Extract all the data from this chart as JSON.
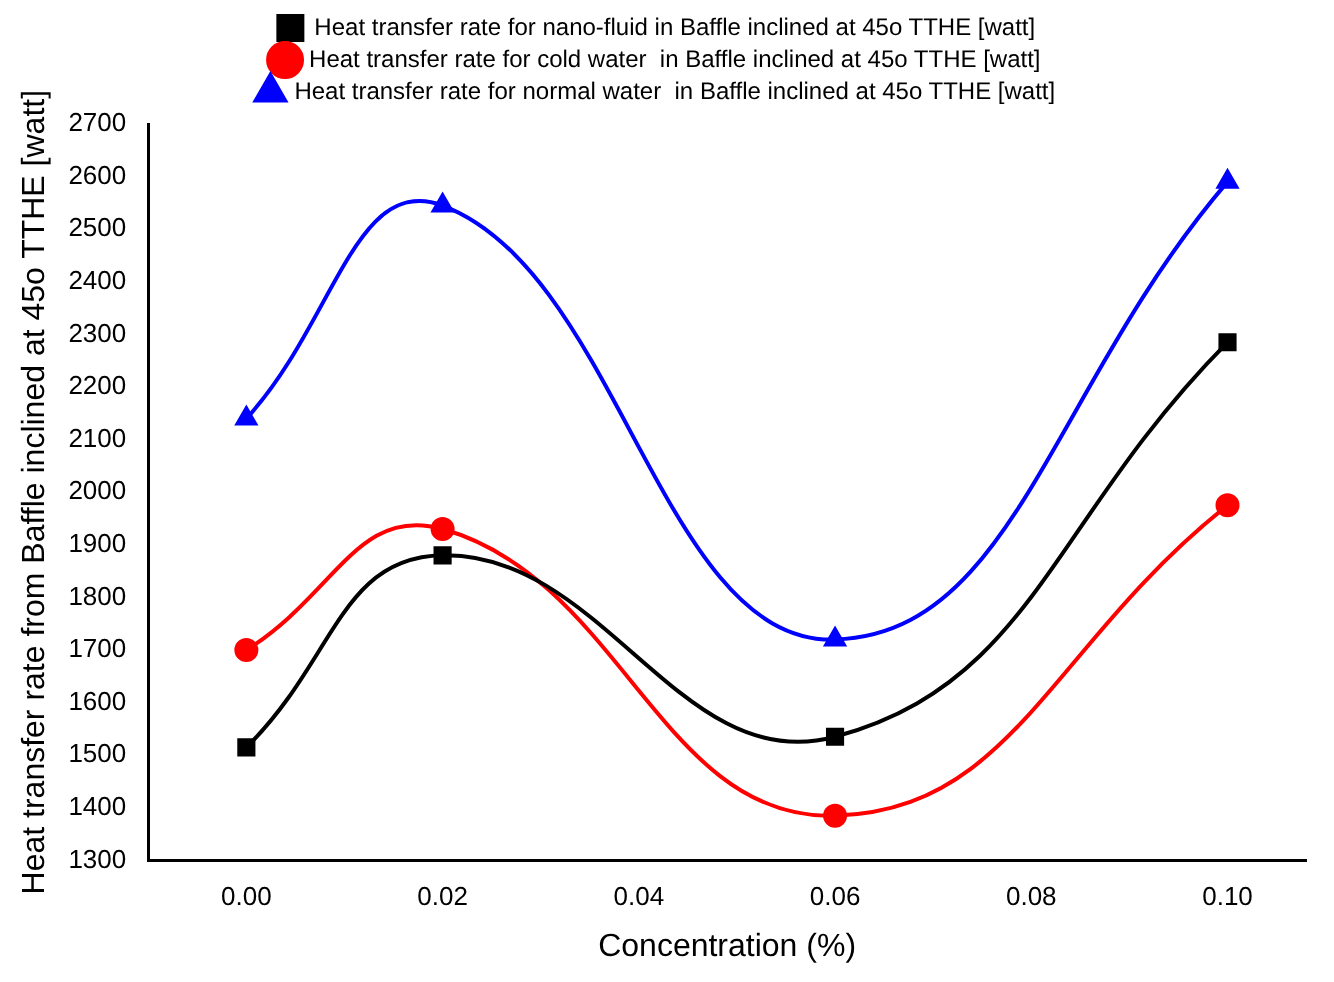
{
  "chart_data": {
    "type": "line",
    "xlabel": "Concentration (%)",
    "ylabel": "Heat transfer rate from Baffle inclined at 45o TTHE [watt]",
    "x": [
      0,
      0.02,
      0.06,
      0.1
    ],
    "series": [
      {
        "name": "Heat transfer rate for nano-fluid in Baffle inclined at 45o TTHE [watt]",
        "color": "#000000",
        "marker": "square",
        "values": [
          1515,
          1880,
          1535,
          2285
        ]
      },
      {
        "name": "Heat transfer rate for cold water  in Baffle inclined at 45o TTHE [watt]",
        "color": "#ff0000",
        "marker": "circle",
        "values": [
          1700,
          1930,
          1385,
          1975
        ]
      },
      {
        "name": "Heat transfer rate for normal water  in Baffle inclined at 45o TTHE [watt]",
        "color": "#0000ff",
        "marker": "triangle",
        "values": [
          2140,
          2545,
          1720,
          2590
        ]
      }
    ],
    "xlim": [
      -0.01,
      0.108
    ],
    "xticks": [
      {
        "value": 0,
        "label": "0.00"
      },
      {
        "value": 0.02,
        "label": "0.02"
      },
      {
        "value": 0.04,
        "label": "0.04"
      },
      {
        "value": 0.06,
        "label": "0.06"
      },
      {
        "value": 0.08,
        "label": "0.08"
      },
      {
        "value": 0.1,
        "label": "0.10"
      }
    ],
    "ylim": [
      1300,
      2700
    ],
    "yticks": [
      1300,
      1400,
      1500,
      1600,
      1700,
      1800,
      1900,
      2000,
      2100,
      2200,
      2300,
      2400,
      2500,
      2600,
      2700
    ],
    "grid": false,
    "legend": "top",
    "line_style": "solid"
  }
}
